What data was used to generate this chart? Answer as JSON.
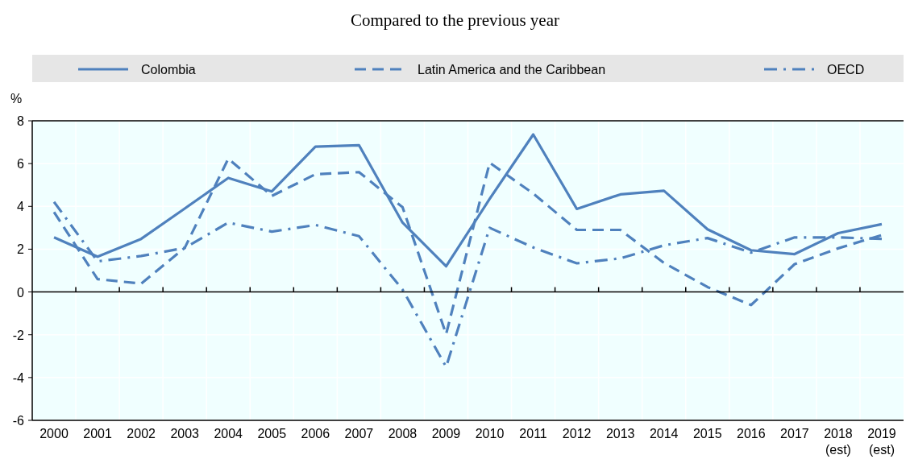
{
  "chart_data": {
    "type": "line",
    "title": "Compared to the previous year",
    "ylabel": "%",
    "categories": [
      "2000",
      "2001",
      "2002",
      "2003",
      "2004",
      "2005",
      "2006",
      "2007",
      "2008",
      "2009",
      "2010",
      "2011",
      "2012",
      "2013",
      "2014",
      "2015",
      "2016",
      "2017",
      "2018\n(est)",
      "2019\n(est)"
    ],
    "series": [
      {
        "name": "Colombia",
        "color": "#4f81bd",
        "line_style": "solid",
        "values": [
          2.55,
          1.65,
          2.48,
          3.9,
          5.33,
          4.7,
          6.79,
          6.86,
          3.24,
          1.2,
          4.35,
          7.36,
          3.88,
          4.56,
          4.73,
          2.93,
          1.95,
          1.77,
          2.75,
          3.17
        ]
      },
      {
        "name": "Latin America and the Caribbean",
        "color": "#4f81bd",
        "line_style": "dashed",
        "values": [
          3.73,
          0.6,
          0.39,
          2.06,
          6.23,
          4.49,
          5.5,
          5.6,
          3.96,
          -1.97,
          6.04,
          4.6,
          2.9,
          2.9,
          1.36,
          0.23,
          -0.61,
          1.3,
          2.04,
          2.66
        ]
      },
      {
        "name": "OECD",
        "color": "#4f81bd",
        "line_style": "dashdot",
        "values": [
          4.21,
          1.43,
          1.68,
          2.06,
          3.24,
          2.82,
          3.13,
          2.61,
          0.11,
          -3.5,
          3.0,
          2.08,
          1.34,
          1.57,
          2.18,
          2.52,
          1.84,
          2.55,
          2.55,
          2.48
        ]
      }
    ],
    "ylim": [
      -6,
      8
    ],
    "yticks": [
      -6,
      -4,
      -2,
      0,
      2,
      4,
      6,
      8
    ],
    "grid": true,
    "legend": "top"
  }
}
